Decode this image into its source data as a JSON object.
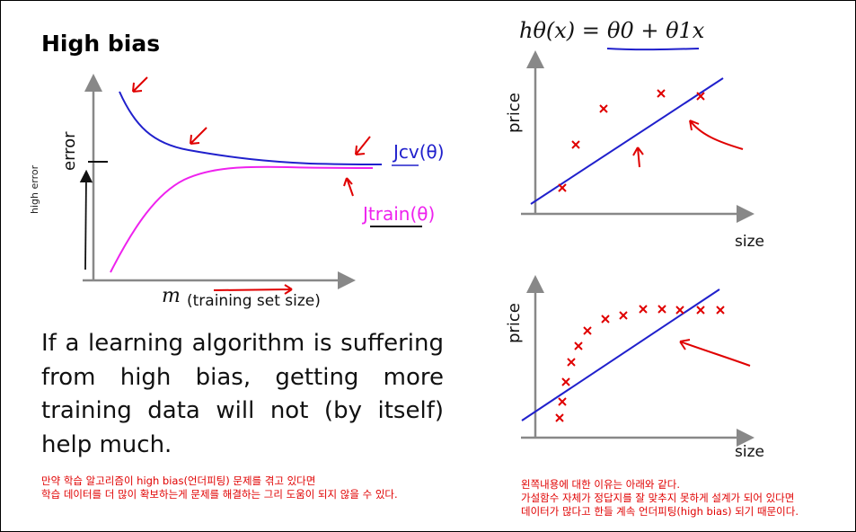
{
  "slide": {
    "title": "High bias",
    "paragraph": "If a learning algorithm is suffering from high bias, getting more training data will not (by itself) help much."
  },
  "learning_curve": {
    "y_axis_label": "error",
    "x_axis_symbol": "m",
    "x_axis_label": "(training set size)",
    "cv_label": "Jcv(θ)",
    "train_label": "Jtrain(θ)",
    "cv_color": "#2020cc",
    "train_color": "#ee22ee",
    "handwritten_y_note": "high error"
  },
  "hypothesis": {
    "formula_lhs": "hθ(x) =",
    "formula_rhs": "θ0 + θ1x"
  },
  "plot_top": {
    "ylabel": "price",
    "xlabel": "size"
  },
  "plot_bottom": {
    "ylabel": "price",
    "xlabel": "size"
  },
  "notes": {
    "left": [
      "만약 학습 알고리즘이 high bias(언더피팅) 문제를 겪고 있다면",
      "학습 데이터를 더 많이 확보하는게 문제를 해결하는 그리 도움이 되지 않을 수 있다."
    ],
    "right": [
      "왼쪽내용에 대한 이유는 아래와 같다.",
      "가설함수 자체가 정답지를 잘 맞추지 못하게 설계가 되어 있다면",
      "데이터가 많다고 한들 계속 언더피팅(high bias) 되기 때문이다."
    ]
  },
  "colors": {
    "fit_line": "#2020cc",
    "points": "#e00000",
    "annotation": "#e00000",
    "note_text": "#e00000"
  }
}
